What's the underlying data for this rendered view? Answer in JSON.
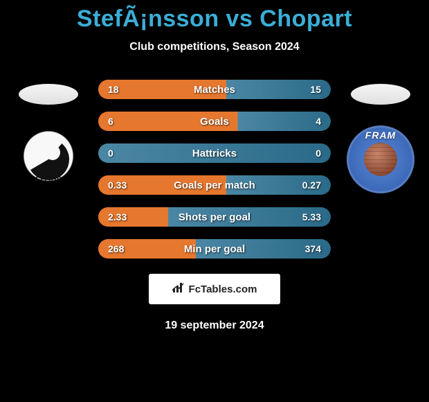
{
  "header": {
    "title": "StefÃ¡nsson vs Chopart",
    "title_color": "#3baed6",
    "subtitle": "Club competitions, Season 2024"
  },
  "players": {
    "left": {
      "badge_text": "FYLKIR"
    },
    "right": {
      "badge_text": "FRAM"
    }
  },
  "colors": {
    "left_bar": "#e6772e",
    "right_bar": "#2a6a88",
    "right_bar_light": "#4b87a4"
  },
  "stats": [
    {
      "label": "Matches",
      "left_val": "18",
      "right_val": "15",
      "left_pct": 55,
      "gradient": true
    },
    {
      "label": "Goals",
      "left_val": "6",
      "right_val": "4",
      "left_pct": 60,
      "gradient": true
    },
    {
      "label": "Hattricks",
      "left_val": "0",
      "right_val": "0",
      "left_pct": 50,
      "gradient": false
    },
    {
      "label": "Goals per match",
      "left_val": "0.33",
      "right_val": "0.27",
      "left_pct": 55,
      "gradient": true
    },
    {
      "label": "Shots per goal",
      "left_val": "2.33",
      "right_val": "5.33",
      "left_pct": 30,
      "gradient": true
    },
    {
      "label": "Min per goal",
      "left_val": "268",
      "right_val": "374",
      "left_pct": 42,
      "gradient": true
    }
  ],
  "footer": {
    "brand": "FcTables.com",
    "date": "19 september 2024"
  }
}
